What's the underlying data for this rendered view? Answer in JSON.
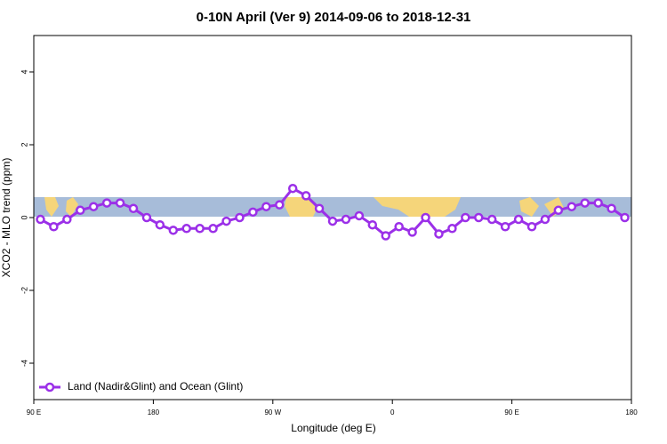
{
  "chart_data": {
    "type": "line",
    "title": "0-10N April (Ver 9)   2014-09-06 to 2018-12-31",
    "x_label": "Longitude (deg E)",
    "y_label": "XCO2 - MLO trend (ppm)",
    "xlim": [
      90,
      540
    ],
    "ylim": [
      -5,
      5
    ],
    "xticks": [
      {
        "value": 90,
        "label": "90 E"
      },
      180,
      {
        "value": 270,
        "label": "90 W"
      },
      {
        "value": 360,
        "label": "0"
      },
      {
        "value": 450,
        "label": "90 E"
      },
      {
        "value": 540,
        "label": "180"
      }
    ],
    "yticks": [
      -4,
      -2,
      0,
      2,
      4
    ],
    "legend": "bottom-left",
    "x": [
      95,
      105,
      115,
      125,
      135,
      145,
      155,
      165,
      175,
      185,
      195,
      205,
      215,
      225,
      235,
      245,
      255,
      265,
      275,
      285,
      295,
      305,
      315,
      325,
      335,
      345,
      355,
      365,
      375,
      385,
      395,
      405,
      415,
      425,
      435,
      445,
      455,
      465,
      475,
      485,
      495,
      505,
      515,
      525,
      535
    ],
    "series": [
      {
        "name": "Land (Nadir&Glint) and Ocean (Glint)",
        "color": "#9b30e8",
        "values": [
          -0.05,
          -0.25,
          -0.05,
          0.2,
          0.3,
          0.4,
          0.4,
          0.25,
          0.0,
          -0.2,
          -0.35,
          -0.3,
          -0.3,
          -0.3,
          -0.1,
          0.0,
          0.15,
          0.3,
          0.35,
          0.8,
          0.6,
          0.25,
          -0.1,
          -0.05,
          0.05,
          -0.2,
          -0.5,
          -0.25,
          -0.4,
          0.0,
          -0.45,
          -0.3,
          0.0,
          0.0,
          -0.05,
          -0.25,
          -0.05,
          -0.25,
          -0.05,
          0.2,
          0.3,
          0.4,
          0.4,
          0.25,
          0.0
        ]
      }
    ]
  }
}
